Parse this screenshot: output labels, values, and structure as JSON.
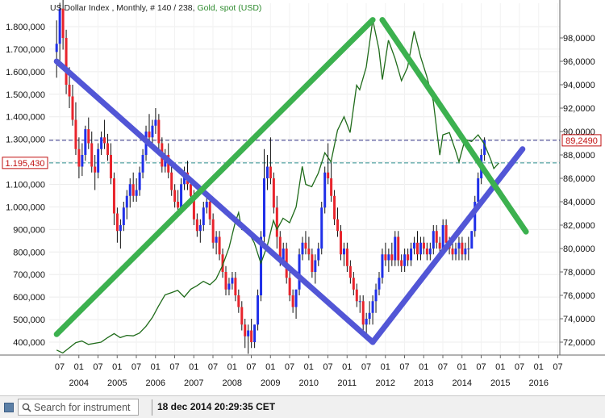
{
  "chart_data": {
    "type": "candlestick+line",
    "title": {
      "main": "US Dollar Index , Monthly, # 140 / 238, ",
      "overlay": "Gold, spot (USD)"
    },
    "left_axis": {
      "ylim": [
        330000,
        1830000
      ],
      "ticks": [
        "400,000",
        "500,000",
        "600,000",
        "700,000",
        "800,000",
        "900,000",
        "1.000,000",
        "1.100,000",
        "1.200,000",
        "1.300,000",
        "1.400,000",
        "1.500,000",
        "1.600,000",
        "1.700,000",
        "1.800,000"
      ]
    },
    "right_axis": {
      "ylim": [
        70,
        99
      ],
      "ticks": [
        "72,0000",
        "74,0000",
        "76,0000",
        "78,0000",
        "80,0000",
        "82,0000",
        "84,0000",
        "86,0000",
        "88,0000",
        "90,0000",
        "92,0000",
        "94,0000",
        "96,0000",
        "98,0000"
      ]
    },
    "x_axis": {
      "start": "2003-04",
      "end": "2016-07",
      "month_ticks": [
        "07",
        "01",
        "07",
        "01",
        "07",
        "01",
        "07",
        "01",
        "07",
        "01",
        "07",
        "01",
        "07",
        "01",
        "07",
        "01",
        "07",
        "01",
        "07",
        "01",
        "07",
        "01",
        "07",
        "01",
        "07",
        "01",
        "07"
      ],
      "year_labels": [
        "2004",
        "2005",
        "2006",
        "2007",
        "2008",
        "2009",
        "2010",
        "2011",
        "2012",
        "2013",
        "2014",
        "2015",
        "2016"
      ]
    },
    "price_labels": {
      "gold_level": "1.195,430",
      "dxy_level": "89,2490"
    },
    "levels": {
      "gold": 1195.43,
      "dxy": 89.249
    },
    "candles_dxy": [
      [
        96.8,
        99.5,
        94.6,
        97.5
      ],
      [
        97.5,
        101.0,
        96.0,
        100.5
      ],
      [
        100.5,
        101.5,
        97.0,
        98.0
      ],
      [
        98.0,
        98.7,
        93.2,
        94.0
      ],
      [
        94.0,
        95.5,
        92.0,
        93.0
      ],
      [
        93.0,
        94.0,
        90.5,
        91.0
      ],
      [
        91.0,
        92.5,
        88.0,
        88.5
      ],
      [
        88.5,
        89.5,
        86.0,
        87.0
      ],
      [
        87.0,
        89.0,
        86.2,
        88.0
      ],
      [
        88.0,
        90.5,
        87.5,
        90.2
      ],
      [
        90.2,
        91.2,
        88.5,
        89.0
      ],
      [
        89.0,
        90.0,
        86.5,
        87.0
      ],
      [
        87.0,
        88.0,
        85.0,
        86.5
      ],
      [
        86.5,
        89.0,
        86.0,
        88.5
      ],
      [
        88.5,
        90.0,
        88.0,
        89.5
      ],
      [
        89.5,
        91.0,
        88.5,
        89.0
      ],
      [
        89.0,
        89.8,
        87.5,
        88.0
      ],
      [
        88.0,
        89.0,
        85.5,
        86.0
      ],
      [
        86.0,
        86.5,
        82.0,
        83.0
      ],
      [
        83.0,
        83.5,
        80.5,
        81.5
      ],
      [
        81.5,
        82.5,
        80.0,
        82.0
      ],
      [
        82.0,
        84.0,
        81.5,
        83.5
      ],
      [
        83.5,
        85.0,
        82.5,
        84.5
      ],
      [
        84.5,
        86.0,
        83.5,
        85.5
      ],
      [
        85.5,
        86.5,
        84.0,
        84.5
      ],
      [
        84.5,
        86.0,
        84.0,
        85.0
      ],
      [
        85.0,
        87.0,
        84.5,
        86.5
      ],
      [
        86.5,
        88.5,
        86.0,
        88.0
      ],
      [
        88.0,
        90.5,
        87.5,
        90.0
      ],
      [
        90.0,
        91.5,
        89.0,
        89.5
      ],
      [
        89.5,
        91.0,
        88.5,
        90.5
      ],
      [
        90.5,
        92.0,
        89.8,
        91.0
      ],
      [
        91.0,
        91.5,
        88.5,
        89.0
      ],
      [
        89.0,
        89.5,
        86.5,
        87.0
      ],
      [
        87.0,
        88.5,
        86.5,
        88.0
      ],
      [
        88.0,
        89.0,
        86.0,
        86.5
      ],
      [
        86.5,
        87.0,
        84.5,
        85.0
      ],
      [
        85.0,
        85.5,
        83.5,
        84.0
      ],
      [
        84.0,
        85.0,
        83.0,
        83.5
      ],
      [
        83.5,
        86.0,
        83.5,
        85.5
      ],
      [
        85.5,
        87.0,
        85.0,
        86.5
      ],
      [
        86.5,
        87.5,
        85.0,
        85.5
      ],
      [
        85.5,
        86.0,
        84.0,
        84.5
      ],
      [
        84.5,
        85.0,
        82.0,
        82.5
      ],
      [
        82.5,
        83.0,
        81.0,
        81.5
      ],
      [
        81.5,
        82.5,
        80.5,
        82.0
      ],
      [
        82.0,
        84.0,
        81.5,
        83.5
      ],
      [
        83.5,
        84.5,
        83.0,
        84.0
      ],
      [
        84.0,
        84.5,
        82.0,
        82.5
      ],
      [
        82.5,
        83.0,
        80.0,
        80.5
      ],
      [
        80.5,
        81.5,
        79.5,
        81.0
      ],
      [
        81.0,
        81.5,
        79.0,
        79.5
      ],
      [
        79.5,
        80.0,
        77.5,
        78.0
      ],
      [
        78.0,
        78.5,
        76.0,
        76.5
      ],
      [
        76.5,
        77.5,
        76.0,
        77.0
      ],
      [
        77.0,
        78.0,
        76.5,
        77.5
      ],
      [
        77.5,
        78.0,
        75.5,
        76.0
      ],
      [
        76.0,
        76.5,
        74.5,
        75.0
      ],
      [
        75.0,
        75.5,
        73.0,
        73.5
      ],
      [
        73.5,
        74.0,
        71.5,
        72.5
      ],
      [
        72.5,
        73.5,
        71.0,
        73.0
      ],
      [
        73.0,
        74.0,
        71.5,
        72.0
      ],
      [
        72.0,
        73.5,
        71.5,
        73.5
      ],
      [
        73.5,
        76.5,
        73.0,
        76.0
      ],
      [
        76.0,
        81.5,
        75.5,
        81.0
      ],
      [
        81.0,
        88.5,
        80.5,
        86.0
      ],
      [
        86.0,
        88.0,
        85.0,
        87.0
      ],
      [
        87.0,
        89.5,
        85.5,
        86.0
      ],
      [
        86.0,
        86.5,
        83.0,
        83.5
      ],
      [
        83.5,
        84.5,
        80.0,
        81.0
      ],
      [
        81.0,
        81.5,
        78.5,
        79.0
      ],
      [
        79.0,
        80.5,
        78.5,
        80.0
      ],
      [
        80.0,
        80.5,
        77.0,
        77.5
      ],
      [
        77.5,
        78.0,
        75.5,
        76.0
      ],
      [
        76.0,
        76.5,
        74.5,
        75.0
      ],
      [
        75.0,
        76.5,
        74.0,
        76.5
      ],
      [
        76.5,
        80.0,
        76.0,
        79.5
      ],
      [
        79.5,
        81.0,
        79.0,
        80.5
      ],
      [
        80.5,
        81.5,
        79.5,
        80.0
      ],
      [
        80.0,
        81.0,
        79.0,
        79.5
      ],
      [
        79.5,
        80.0,
        77.5,
        78.0
      ],
      [
        78.0,
        79.5,
        77.0,
        79.0
      ],
      [
        79.0,
        80.5,
        78.5,
        80.0
      ],
      [
        80.0,
        84.0,
        79.5,
        83.5
      ],
      [
        83.5,
        87.0,
        83.0,
        86.5
      ],
      [
        86.5,
        89.0,
        85.5,
        86.0
      ],
      [
        86.0,
        87.5,
        84.0,
        84.5
      ],
      [
        84.5,
        85.0,
        82.0,
        82.5
      ],
      [
        82.5,
        83.5,
        81.0,
        81.5
      ],
      [
        81.5,
        82.0,
        79.0,
        79.5
      ],
      [
        79.5,
        80.5,
        78.5,
        80.0
      ],
      [
        80.0,
        80.5,
        78.0,
        78.5
      ],
      [
        78.5,
        79.0,
        77.0,
        77.5
      ],
      [
        77.5,
        78.0,
        76.0,
        76.5
      ],
      [
        76.5,
        77.0,
        75.0,
        75.5
      ],
      [
        75.5,
        76.0,
        74.5,
        75.5
      ],
      [
        75.5,
        76.0,
        73.0,
        73.5
      ],
      [
        73.5,
        74.5,
        72.5,
        74.0
      ],
      [
        74.0,
        75.5,
        73.5,
        74.5
      ],
      [
        74.5,
        76.0,
        73.5,
        75.5
      ],
      [
        75.5,
        77.0,
        74.5,
        76.5
      ],
      [
        76.5,
        78.0,
        76.0,
        77.5
      ],
      [
        77.5,
        80.0,
        77.0,
        79.5
      ],
      [
        79.5,
        80.5,
        78.5,
        79.0
      ],
      [
        79.0,
        80.0,
        78.0,
        79.5
      ],
      [
        79.5,
        80.5,
        78.5,
        79.0
      ],
      [
        79.0,
        81.5,
        78.5,
        81.0
      ],
      [
        81.0,
        81.5,
        78.5,
        79.0
      ],
      [
        79.0,
        79.5,
        78.0,
        78.5
      ],
      [
        78.5,
        80.0,
        78.0,
        79.5
      ],
      [
        79.5,
        80.0,
        78.5,
        79.0
      ],
      [
        79.0,
        80.5,
        78.5,
        80.0
      ],
      [
        80.0,
        81.0,
        79.5,
        80.5
      ],
      [
        80.5,
        81.5,
        79.0,
        79.5
      ],
      [
        79.5,
        81.0,
        79.0,
        80.5
      ],
      [
        80.5,
        81.0,
        79.5,
        80.0
      ],
      [
        80.0,
        80.5,
        79.0,
        79.5
      ],
      [
        79.5,
        80.5,
        79.0,
        80.0
      ],
      [
        80.0,
        82.0,
        79.5,
        81.5
      ],
      [
        81.5,
        82.0,
        80.0,
        80.5
      ],
      [
        80.5,
        81.0,
        79.5,
        80.0
      ],
      [
        80.0,
        82.5,
        79.5,
        82.0
      ],
      [
        82.0,
        82.5,
        80.0,
        80.5
      ],
      [
        80.5,
        81.0,
        79.5,
        80.0
      ],
      [
        80.0,
        81.0,
        79.0,
        79.5
      ],
      [
        79.5,
        80.5,
        79.0,
        80.0
      ],
      [
        80.0,
        81.0,
        79.0,
        80.5
      ],
      [
        80.5,
        81.0,
        79.0,
        79.5
      ],
      [
        79.5,
        80.5,
        79.0,
        80.0
      ],
      [
        80.0,
        81.0,
        79.0,
        80.0
      ],
      [
        80.0,
        81.5,
        80.0,
        81.5
      ],
      [
        81.5,
        84.5,
        81.0,
        84.0
      ],
      [
        84.0,
        86.5,
        83.5,
        86.0
      ],
      [
        86.0,
        88.5,
        85.5,
        88.0
      ],
      [
        88.0,
        89.5,
        87.5,
        89.25
      ]
    ],
    "series_gold": [
      [
        2003.42,
        365
      ],
      [
        2003.58,
        352
      ],
      [
        2003.75,
        375
      ],
      [
        2003.92,
        398
      ],
      [
        2004.08,
        405
      ],
      [
        2004.25,
        390
      ],
      [
        2004.42,
        395
      ],
      [
        2004.58,
        400
      ],
      [
        2004.75,
        420
      ],
      [
        2004.92,
        438
      ],
      [
        2005.08,
        420
      ],
      [
        2005.25,
        430
      ],
      [
        2005.42,
        428
      ],
      [
        2005.58,
        440
      ],
      [
        2005.75,
        470
      ],
      [
        2005.92,
        510
      ],
      [
        2006.08,
        560
      ],
      [
        2006.25,
        610
      ],
      [
        2006.42,
        620
      ],
      [
        2006.58,
        630
      ],
      [
        2006.75,
        600
      ],
      [
        2006.92,
        635
      ],
      [
        2007.08,
        650
      ],
      [
        2007.25,
        670
      ],
      [
        2007.42,
        655
      ],
      [
        2007.58,
        680
      ],
      [
        2007.75,
        740
      ],
      [
        2007.92,
        820
      ],
      [
        2008.08,
        930
      ],
      [
        2008.17,
        975
      ],
      [
        2008.25,
        900
      ],
      [
        2008.42,
        890
      ],
      [
        2008.58,
        840
      ],
      [
        2008.75,
        750
      ],
      [
        2008.92,
        830
      ],
      [
        2009.08,
        940
      ],
      [
        2009.17,
        900
      ],
      [
        2009.33,
        950
      ],
      [
        2009.5,
        930
      ],
      [
        2009.67,
        1000
      ],
      [
        2009.83,
        1180
      ],
      [
        2009.92,
        1100
      ],
      [
        2010.08,
        1090
      ],
      [
        2010.25,
        1150
      ],
      [
        2010.42,
        1240
      ],
      [
        2010.58,
        1200
      ],
      [
        2010.75,
        1340
      ],
      [
        2010.92,
        1400
      ],
      [
        2011.08,
        1330
      ],
      [
        2011.25,
        1540
      ],
      [
        2011.33,
        1520
      ],
      [
        2011.5,
        1620
      ],
      [
        2011.67,
        1830
      ],
      [
        2011.83,
        1700
      ],
      [
        2011.92,
        1565
      ],
      [
        2012.08,
        1740
      ],
      [
        2012.25,
        1660
      ],
      [
        2012.42,
        1560
      ],
      [
        2012.58,
        1620
      ],
      [
        2012.75,
        1780
      ],
      [
        2012.92,
        1665
      ],
      [
        2013.08,
        1580
      ],
      [
        2013.25,
        1470
      ],
      [
        2013.42,
        1230
      ],
      [
        2013.5,
        1320
      ],
      [
        2013.67,
        1330
      ],
      [
        2013.83,
        1250
      ],
      [
        2013.92,
        1200
      ],
      [
        2014.08,
        1300
      ],
      [
        2014.25,
        1290
      ],
      [
        2014.42,
        1320
      ],
      [
        2014.58,
        1280
      ],
      [
        2014.75,
        1210
      ],
      [
        2014.83,
        1170
      ],
      [
        2014.96,
        1195
      ]
    ],
    "trendlines": [
      {
        "series": "dxy",
        "from": [
          2003.42,
          96.0
        ],
        "to": [
          2011.67,
          72.0
        ]
      },
      {
        "series": "dxy",
        "from": [
          2011.67,
          72.0
        ],
        "to": [
          2015.58,
          88.5
        ]
      },
      {
        "series": "gold",
        "from": [
          2003.42,
          435
        ],
        "to": [
          2011.67,
          1830
        ]
      },
      {
        "series": "gold",
        "from": [
          2011.92,
          1830
        ],
        "to": [
          2015.67,
          890
        ]
      }
    ],
    "colors": {
      "candle_up": "#2030e8",
      "candle_down": "#e8242c",
      "gold_line": "#1f6b1a",
      "trend_dxy": "#5256d6",
      "trend_gold": "#3cb14f",
      "title_main": "#222222",
      "title_overlay": "#2e8b2e",
      "gold_label": "#c01010",
      "dxy_label": "#c01010",
      "gold_hline": "#2e8f8f",
      "dxy_hline": "#333388"
    }
  },
  "status_bar": {
    "search_placeholder": "Search for instrument",
    "timestamp": "18 dec 2014 20:29:35 CET"
  }
}
